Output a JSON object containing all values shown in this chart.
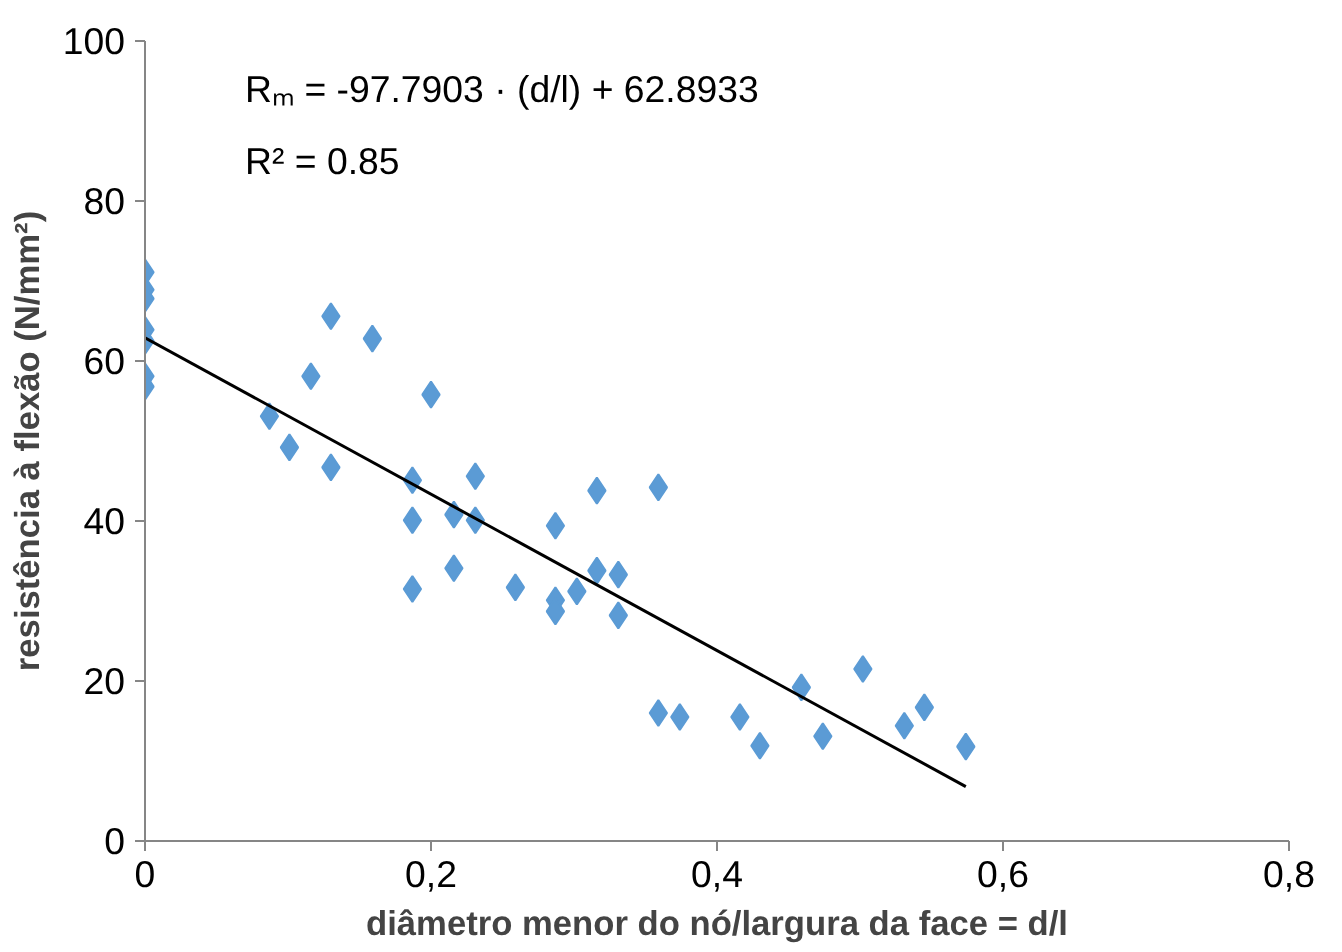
{
  "chart_data": {
    "type": "scatter",
    "xlabel": "diâmetro menor do nó/largura da face = d/l",
    "ylabel": "resistência à flexão (N/mm²)",
    "annotations": [
      "Rₘ = -97.7903 · (d/l) + 62.8933",
      "R² = 0.85"
    ],
    "xlim": [
      0,
      0.8
    ],
    "ylim": [
      0,
      100
    ],
    "xticks": [
      {
        "value": 0,
        "label": "0"
      },
      {
        "value": 0.2,
        "label": "0,2"
      },
      {
        "value": 0.4,
        "label": "0,4"
      },
      {
        "value": 0.6,
        "label": "0,6"
      },
      {
        "value": 0.8,
        "label": "0,8"
      }
    ],
    "yticks": [
      0,
      20,
      40,
      60,
      80,
      100
    ],
    "grid": false,
    "series": [
      {
        "marker": "diamond",
        "color": "#5b9bd5",
        "x": [
          0,
          0,
          0,
          0,
          0,
          0,
          0,
          0.13,
          0.159,
          0.116,
          0.087,
          0.101,
          0.13,
          0.2,
          0.187,
          0.187,
          0.231,
          0.216,
          0.231,
          0.216,
          0.187,
          0.287,
          0.316,
          0.359,
          0.259,
          0.287,
          0.287,
          0.302,
          0.316,
          0.331,
          0.331,
          0.359,
          0.374,
          0.416,
          0.43,
          0.474,
          0.459,
          0.502,
          0.531,
          0.545,
          0.574
        ],
        "values": [
          71.1,
          68.9,
          67.8,
          63.9,
          62.5,
          58.1,
          56.8,
          65.6,
          62.8,
          58.1,
          53.1,
          49.2,
          46.7,
          55.8,
          45.1,
          40.1,
          45.6,
          40.8,
          40.1,
          34.1,
          31.5,
          39.4,
          43.8,
          44.2,
          31.7,
          30.1,
          28.7,
          31.2,
          33.8,
          33.3,
          28.2,
          16.0,
          15.5,
          15.5,
          11.9,
          13.1,
          19.2,
          21.5,
          14.4,
          16.7,
          11.8
        ]
      },
      {
        "type": "line",
        "color": "#000000",
        "x": [
          0,
          0.574
        ],
        "values": [
          62.9,
          6.8
        ]
      }
    ]
  }
}
